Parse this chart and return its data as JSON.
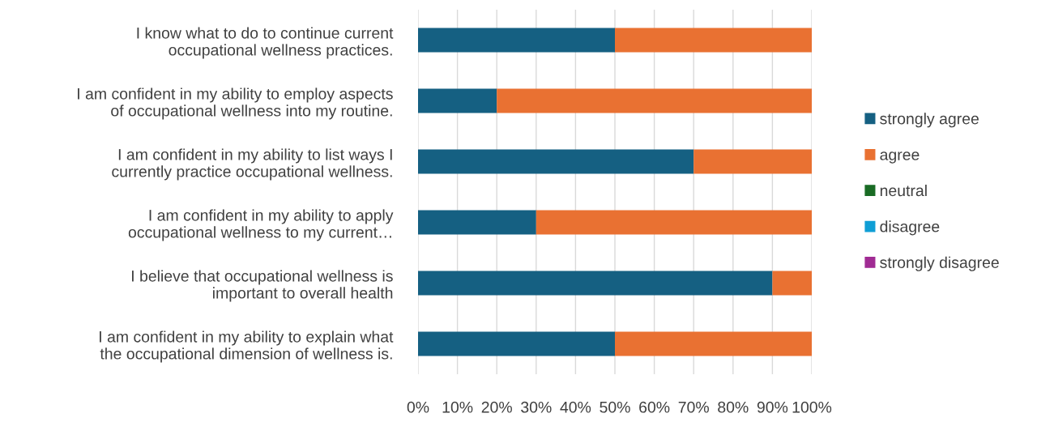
{
  "chart_data": {
    "type": "bar",
    "orientation": "horizontal",
    "stacked": true,
    "categories": [
      "I know what to do to continue current\noccupational wellness practices.",
      "I am confident in my ability to employ aspects\nof occupational wellness into my routine.",
      "I am confident in my ability to list ways I\ncurrently practice occupational wellness.",
      "I am confident in my ability to apply\noccupational wellness to my current…",
      "I believe that occupational wellness is\nimportant to overall health",
      "I am confident in my ability to explain what\nthe occupational dimension of wellness is."
    ],
    "series": [
      {
        "name": "strongly agree",
        "color": "#156082",
        "values": [
          50,
          20,
          70,
          30,
          90,
          50
        ]
      },
      {
        "name": "agree",
        "color": "#e97132",
        "values": [
          50,
          80,
          30,
          70,
          10,
          50
        ]
      },
      {
        "name": "neutral",
        "color": "#196b24",
        "values": [
          0,
          0,
          0,
          0,
          0,
          0
        ]
      },
      {
        "name": "disagree",
        "color": "#0f9ed5",
        "values": [
          0,
          0,
          0,
          0,
          0,
          0
        ]
      },
      {
        "name": "strongly disagree",
        "color": "#a02b93",
        "values": [
          0,
          0,
          0,
          0,
          0,
          0
        ]
      }
    ],
    "xlim": [
      0,
      100
    ],
    "xticks": [
      {
        "value": 0,
        "label": "0%"
      },
      {
        "value": 10,
        "label": "10%"
      },
      {
        "value": 20,
        "label": "20%"
      },
      {
        "value": 30,
        "label": "30%"
      },
      {
        "value": 40,
        "label": "40%"
      },
      {
        "value": 50,
        "label": "50%"
      },
      {
        "value": 60,
        "label": "60%"
      },
      {
        "value": 70,
        "label": "70%"
      },
      {
        "value": 80,
        "label": "80%"
      },
      {
        "value": 90,
        "label": "90%"
      },
      {
        "value": 100,
        "label": "100%"
      }
    ],
    "grid": "x",
    "legend": "right"
  }
}
